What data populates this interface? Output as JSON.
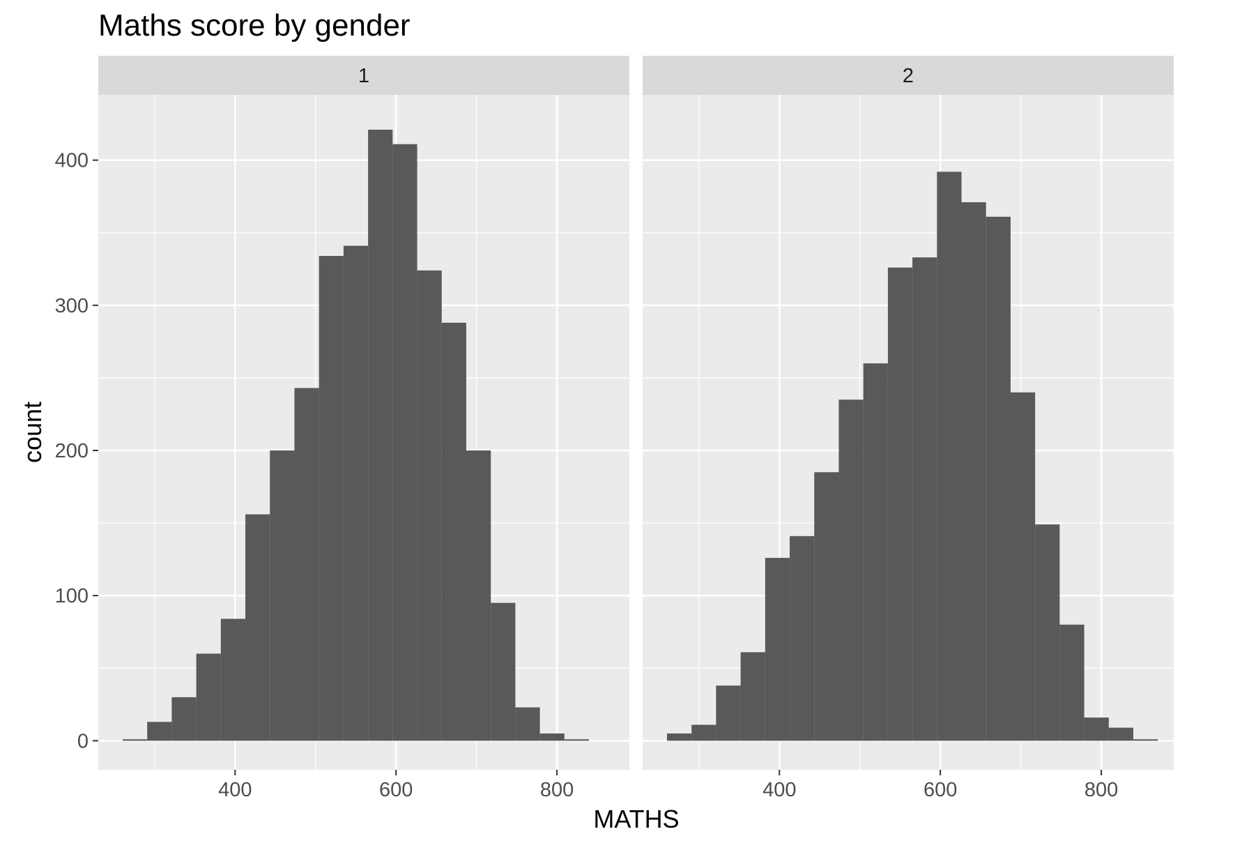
{
  "chart_data": {
    "type": "bar",
    "subtype": "faceted-histogram",
    "title": "Maths score by gender",
    "xlabel": "MATHS",
    "ylabel": "count",
    "xlim": [
      230,
      890
    ],
    "ylim": [
      -20,
      445
    ],
    "x_ticks": [
      400,
      600,
      800
    ],
    "y_ticks": [
      0,
      100,
      200,
      300,
      400
    ],
    "grid": true,
    "bar_color": "#595959",
    "panel_background": "#ebebeb",
    "strip_background": "#d9d9d9",
    "bin_width": 30.5,
    "facets": [
      {
        "label": "1",
        "bin_start": 260.3,
        "values": [
          1,
          13,
          30,
          60,
          84,
          156,
          200,
          243,
          334,
          341,
          421,
          411,
          324,
          288,
          200,
          95,
          23,
          5,
          1
        ]
      },
      {
        "label": "2",
        "bin_start": 260.3,
        "values": [
          5,
          11,
          38,
          61,
          126,
          141,
          185,
          235,
          260,
          326,
          333,
          392,
          371,
          361,
          240,
          149,
          80,
          16,
          9,
          1
        ]
      }
    ]
  }
}
